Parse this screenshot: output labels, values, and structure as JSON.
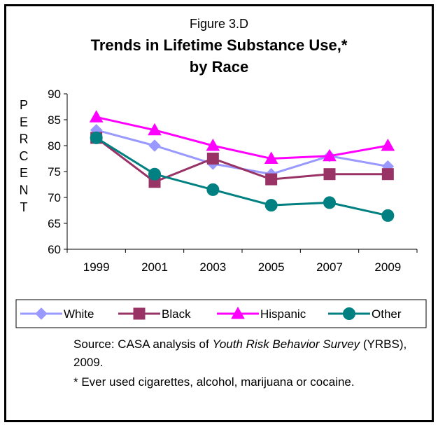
{
  "figure_label": "Figure 3.D",
  "chart_data": {
    "type": "line",
    "title": "Trends in Lifetime Substance Use,*",
    "subtitle": "by Race",
    "ylabel": "PERCENT",
    "xlabel": "",
    "categories": [
      "1999",
      "2001",
      "2003",
      "2005",
      "2007",
      "2009"
    ],
    "ylim": [
      60,
      90
    ],
    "yticks": [
      60,
      65,
      70,
      75,
      80,
      85,
      90
    ],
    "grid": false,
    "legend_position": "bottom",
    "series": [
      {
        "name": "White",
        "values": [
          83,
          80,
          76.5,
          74.5,
          78,
          76
        ],
        "color": "#9999ff",
        "marker": "diamond"
      },
      {
        "name": "Black",
        "values": [
          81.5,
          73,
          77.5,
          73.5,
          74.5,
          74.5
        ],
        "color": "#993366",
        "marker": "square"
      },
      {
        "name": "Hispanic",
        "values": [
          85.5,
          83,
          80,
          77.5,
          78,
          80
        ],
        "color": "#ff00ff",
        "marker": "triangle"
      },
      {
        "name": "Other",
        "values": [
          81.5,
          74.5,
          71.5,
          68.5,
          69,
          66.5
        ],
        "color": "#008080",
        "marker": "circle"
      }
    ]
  },
  "source": {
    "prefix": "Source: CASA analysis of ",
    "title_italic": "Youth Risk Behavior Survey",
    "suffix": " (YRBS), 2009.",
    "footnote": "* Ever used cigarettes, alcohol, marijuana or cocaine."
  }
}
